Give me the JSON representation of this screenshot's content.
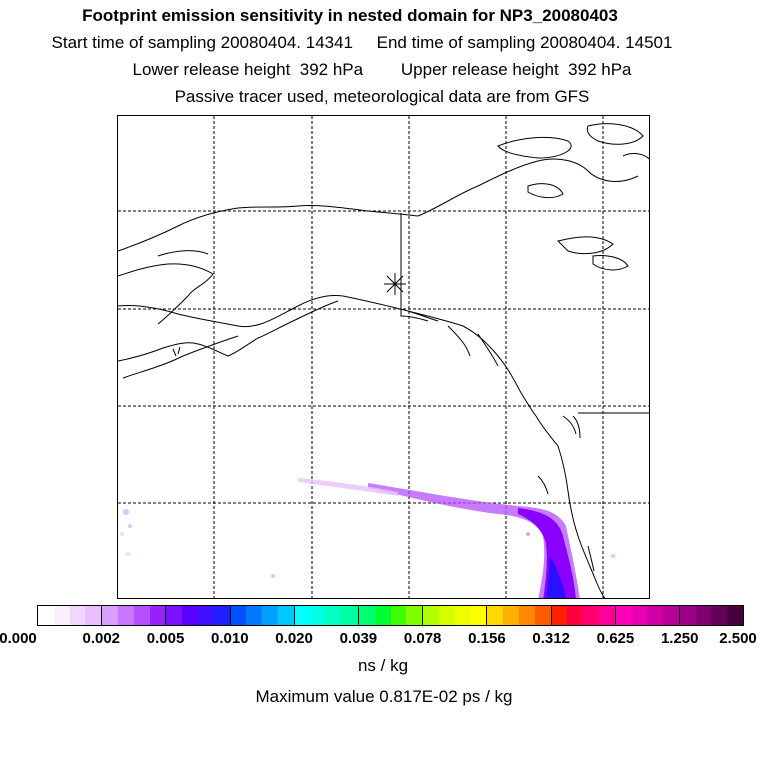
{
  "header": {
    "title": "Footprint emission sensitivity in nested domain for NP3_20080403",
    "line1": "Start time of sampling 20080404. 14341     End time of sampling 20080404. 14501",
    "line2": "Lower release height  392 hPa        Upper release height  392 hPa",
    "line3": "Passive tracer used, meteorological data are from GFS"
  },
  "map": {
    "release_marker": "release-point-star",
    "grid": "dashed graticule, 4 vertical by 4 horizontal lines",
    "plume_color": "#8a00ff",
    "plume_core_color": "#2a10ff"
  },
  "colorbar": {
    "tick_labels": [
      "0.000",
      "0.002",
      "0.005",
      "0.010",
      "0.020",
      "0.039",
      "0.078",
      "0.156",
      "0.312",
      "0.625",
      "1.250",
      "2.500"
    ],
    "colors": [
      "#ffffff",
      "#fbf0ff",
      "#f2d8ff",
      "#e8c0ff",
      "#d9a0ff",
      "#c878ff",
      "#b450ff",
      "#9a20ff",
      "#7a10ff",
      "#5a00ff",
      "#3c10ff",
      "#2020ff",
      "#0050ff",
      "#0078ff",
      "#00a0ff",
      "#00c8ff",
      "#00ffff",
      "#00ffe0",
      "#00ffc0",
      "#00ffa0",
      "#00ff70",
      "#00ff30",
      "#40ff00",
      "#80ff00",
      "#b0ff00",
      "#d8ff00",
      "#f0ff00",
      "#ffff00",
      "#ffd800",
      "#ffb000",
      "#ff8800",
      "#ff5c00",
      "#ff2000",
      "#ff0040",
      "#ff0070",
      "#ff0098",
      "#ff00b8",
      "#e800b0",
      "#d000a8",
      "#b80098",
      "#9c0088",
      "#800070",
      "#640058",
      "#480040"
    ],
    "units": "ns / kg"
  },
  "footer": {
    "max_value": "Maximum value  0.817E-02 ps / kg"
  }
}
